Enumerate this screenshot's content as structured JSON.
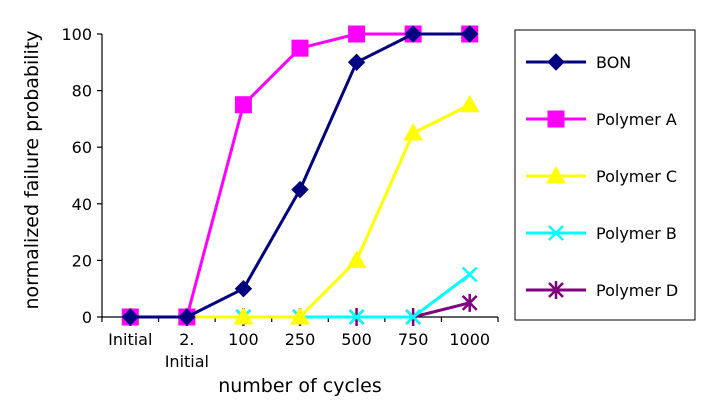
{
  "chart_data": {
    "type": "line",
    "xlabel": "number of cycles",
    "ylabel": "normalized failure probability",
    "categories": [
      "Initial",
      "2.\nInitial",
      "100",
      "250",
      "500",
      "750",
      "1000"
    ],
    "ylim": [
      0,
      100
    ],
    "yticks": [
      0,
      20,
      40,
      60,
      80,
      100
    ],
    "grid": false,
    "legend_position": "right",
    "series": [
      {
        "name": "BON",
        "color": "#000080",
        "marker": "diamond",
        "values": [
          0,
          0,
          10,
          45,
          90,
          100,
          100
        ]
      },
      {
        "name": "Polymer A",
        "color": "#FF00FF",
        "marker": "square",
        "values": [
          0,
          0,
          75,
          95,
          100,
          100,
          100
        ]
      },
      {
        "name": "Polymer C",
        "color": "#FFFF00",
        "marker": "triangle",
        "values": [
          0,
          0,
          0,
          0,
          20,
          65,
          75
        ]
      },
      {
        "name": "Polymer B",
        "color": "#00FFFF",
        "marker": "x",
        "values": [
          0,
          0,
          0,
          0,
          0,
          0,
          15
        ]
      },
      {
        "name": "Polymer D",
        "color": "#800080",
        "marker": "asterisk",
        "values": [
          0,
          0,
          0,
          0,
          0,
          0,
          5
        ]
      }
    ]
  }
}
